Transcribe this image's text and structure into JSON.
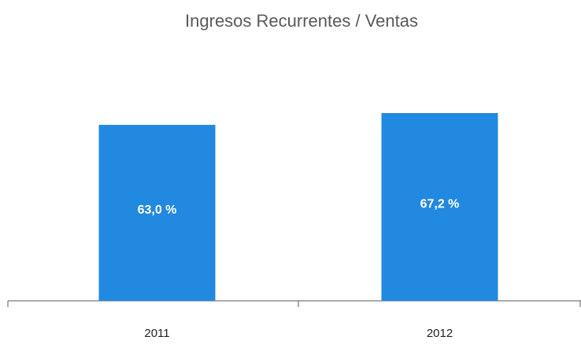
{
  "chart_data": {
    "type": "bar",
    "title": "Ingresos Recurrentes / Ventas",
    "categories": [
      "2011",
      "2012"
    ],
    "values": [
      63.0,
      67.2
    ],
    "value_labels": [
      "63,0 %",
      "67,2 %"
    ],
    "color": "#2289e0"
  }
}
